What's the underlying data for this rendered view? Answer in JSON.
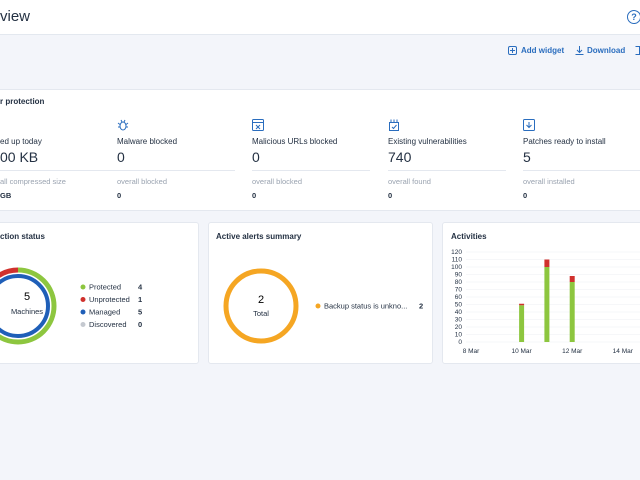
{
  "header": {
    "title": "view",
    "help": "?"
  },
  "toolbar": {
    "add_widget": "Add widget",
    "download": "Download"
  },
  "protection": {
    "title": "r protection",
    "cards": [
      {
        "label": "ed up today",
        "value": "00 KB",
        "sub_label": "all compressed size",
        "sub_value": "GB"
      },
      {
        "label": "Malware blocked",
        "value": "0",
        "sub_label": "overall blocked",
        "sub_value": "0"
      },
      {
        "label": "Malicious URLs blocked",
        "value": "0",
        "sub_label": "overall blocked",
        "sub_value": "0"
      },
      {
        "label": "Existing vulnerabilities",
        "value": "740",
        "sub_label": "overall found",
        "sub_value": "0"
      },
      {
        "label": "Patches ready to install",
        "value": "5",
        "sub_label": "overall installed",
        "sub_value": "0"
      }
    ]
  },
  "protection_status": {
    "title": "ction status",
    "total": 5,
    "total_label": "Machines",
    "legend": [
      {
        "name": "Protected",
        "value": 4,
        "color": "#8dc63f"
      },
      {
        "name": "Unprotected",
        "value": 1,
        "color": "#d0312d"
      },
      {
        "name": "Managed",
        "value": 5,
        "color": "#1f5fb8"
      },
      {
        "name": "Discovered",
        "value": 0,
        "color": "#c5c9d0"
      }
    ]
  },
  "alerts": {
    "title": "Active alerts summary",
    "total": 2,
    "total_label": "Total",
    "legend": [
      {
        "name": "Backup status is unkno...",
        "value": 2,
        "color": "#f5a623"
      }
    ]
  },
  "activities": {
    "title": "Activities",
    "chart": {
      "type": "bar",
      "stacked": true,
      "categories": [
        "8 Mar",
        null,
        "10 Mar",
        null,
        "12 Mar",
        null,
        "14 Mar"
      ],
      "series": [
        {
          "color": "#8dc63f",
          "values": [
            0,
            0,
            49,
            100,
            80,
            0,
            0
          ]
        },
        {
          "color": "#d0312d",
          "values": [
            0,
            0,
            2,
            10,
            8,
            0,
            0
          ]
        }
      ],
      "ylim": [
        0,
        120
      ],
      "yticks": [
        0,
        10,
        20,
        30,
        40,
        50,
        60,
        70,
        80,
        90,
        100,
        110,
        120
      ],
      "grid": true
    }
  }
}
